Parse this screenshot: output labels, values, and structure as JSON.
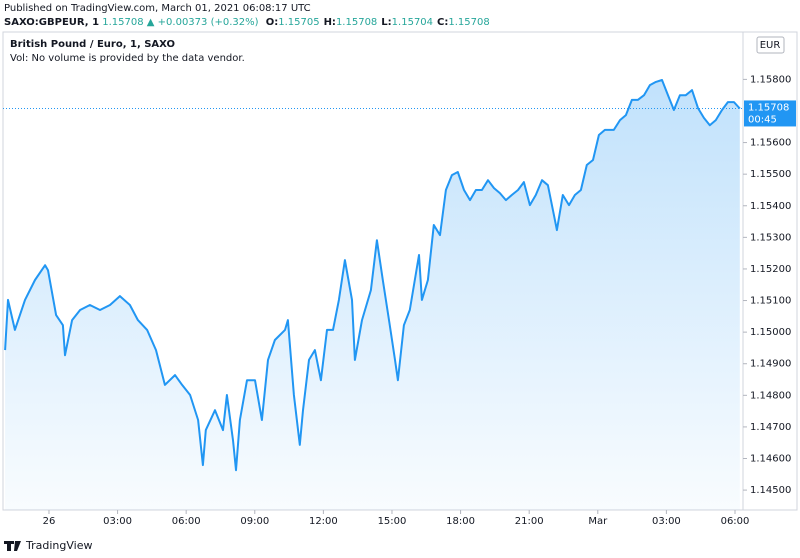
{
  "chart_data": {
    "type": "area",
    "published": "Published on TradingView.com, March 01, 2021 06:08:17 UTC",
    "symbol": "SAXO:GBPEUR, 1",
    "last": 1.15708,
    "arrow": "▲",
    "change": "+0.00373 (+0.32%)",
    "ohlc": [
      {
        "label": "O:",
        "value": 1.15705
      },
      {
        "label": "H:",
        "value": 1.15708
      },
      {
        "label": "L:",
        "value": 1.15704
      },
      {
        "label": "C:",
        "value": 1.15708
      }
    ],
    "title": "British Pound / Euro, 1, SAXO",
    "subtitle": "Vol: No volume is provided by the data vendor.",
    "currency": "EUR",
    "price_label": {
      "value": 1.15708,
      "label": "1.15708"
    },
    "countdown": "00:45",
    "brand": "TradingView",
    "xlim": [
      -2.01,
      30.35
    ],
    "ylim": [
      1.14437,
      1.1595
    ],
    "xticks": [
      {
        "value": 0,
        "label": "26"
      },
      {
        "value": 3,
        "label": "03:00"
      },
      {
        "value": 6,
        "label": "06:00"
      },
      {
        "value": 9,
        "label": "09:00"
      },
      {
        "value": 12,
        "label": "12:00"
      },
      {
        "value": 15,
        "label": "15:00"
      },
      {
        "value": 18,
        "label": "18:00"
      },
      {
        "value": 21,
        "label": "21:00"
      },
      {
        "value": 24,
        "label": "Mar"
      },
      {
        "value": 27,
        "label": "03:00"
      },
      {
        "value": 30,
        "label": "06:00"
      }
    ],
    "yticks": [
      {
        "value": 1.158,
        "label": "1.15800"
      },
      {
        "value": 1.156,
        "label": "1.15600"
      },
      {
        "value": 1.155,
        "label": "1.15500"
      },
      {
        "value": 1.154,
        "label": "1.15400"
      },
      {
        "value": 1.153,
        "label": "1.15300"
      },
      {
        "value": 1.152,
        "label": "1.15200"
      },
      {
        "value": 1.151,
        "label": "1.15100"
      },
      {
        "value": 1.15,
        "label": "1.15000"
      },
      {
        "value": 1.149,
        "label": "1.14900"
      },
      {
        "value": 1.148,
        "label": "1.14800"
      },
      {
        "value": 1.147,
        "label": "1.14700"
      },
      {
        "value": 1.146,
        "label": "1.14600"
      },
      {
        "value": 1.145,
        "label": "1.14500"
      }
    ],
    "x": [
      -1.92,
      -1.79,
      -1.49,
      -1.05,
      -0.61,
      -0.17,
      -0.04,
      0.31,
      0.61,
      0.7,
      1.01,
      1.36,
      1.79,
      2.23,
      2.67,
      3.1,
      3.54,
      3.89,
      4.29,
      4.68,
      5.07,
      5.51,
      5.82,
      6.17,
      6.52,
      6.73,
      6.86,
      7.26,
      7.61,
      7.78,
      8.05,
      8.18,
      8.35,
      8.66,
      9.01,
      9.31,
      9.58,
      9.88,
      10.32,
      10.45,
      10.71,
      10.97,
      11.11,
      11.37,
      11.63,
      11.89,
      12.16,
      12.42,
      12.68,
      12.94,
      13.25,
      13.38,
      13.69,
      14.08,
      14.34,
      14.6,
      14.87,
      15.13,
      15.26,
      15.52,
      15.78,
      16.18,
      16.31,
      16.57,
      16.83,
      17.1,
      17.36,
      17.62,
      17.88,
      18.15,
      18.41,
      18.67,
      18.93,
      19.2,
      19.46,
      19.72,
      19.98,
      20.24,
      20.51,
      20.77,
      21.03,
      21.29,
      21.56,
      21.82,
      22.08,
      22.21,
      22.47,
      22.74,
      23.0,
      23.26,
      23.52,
      23.79,
      24.05,
      24.31,
      24.7,
      24.97,
      25.23,
      25.49,
      25.75,
      26.02,
      26.28,
      26.54,
      26.81,
      27.07,
      27.33,
      27.59,
      27.85,
      28.12,
      28.38,
      28.64,
      28.9,
      29.16,
      29.43,
      29.69,
      29.95,
      30.21
    ],
    "series": [
      {
        "name": "GBPEUR",
        "color": "#2196f3",
        "values": [
          1.14943,
          1.15102,
          1.15007,
          1.15102,
          1.15165,
          1.15212,
          1.15196,
          1.15054,
          1.15022,
          1.14927,
          1.15038,
          1.1507,
          1.15086,
          1.1507,
          1.15086,
          1.15114,
          1.15086,
          1.15038,
          1.15007,
          1.14943,
          1.14833,
          1.14864,
          1.14833,
          1.14801,
          1.14722,
          1.14579,
          1.1469,
          1.14753,
          1.1469,
          1.14801,
          1.14658,
          1.14563,
          1.14722,
          1.14848,
          1.14848,
          1.14722,
          1.14912,
          1.14975,
          1.15007,
          1.15038,
          1.14801,
          1.14643,
          1.14753,
          1.14912,
          1.14943,
          1.14848,
          1.15007,
          1.15007,
          1.15102,
          1.15228,
          1.15102,
          1.14912,
          1.15038,
          1.15133,
          1.15291,
          1.15165,
          1.15038,
          1.14912,
          1.14848,
          1.15022,
          1.1507,
          1.15244,
          1.15102,
          1.15165,
          1.15339,
          1.15307,
          1.1545,
          1.15497,
          1.15507,
          1.1545,
          1.15418,
          1.1545,
          1.1545,
          1.15481,
          1.15456,
          1.1544,
          1.15418,
          1.15434,
          1.1545,
          1.15475,
          1.15402,
          1.15434,
          1.15481,
          1.15465,
          1.15371,
          1.15323,
          1.15434,
          1.15402,
          1.15434,
          1.1545,
          1.15529,
          1.15545,
          1.15624,
          1.1564,
          1.1564,
          1.15671,
          1.15687,
          1.15735,
          1.15735,
          1.1575,
          1.15782,
          1.15792,
          1.15798,
          1.1575,
          1.15703,
          1.1575,
          1.1575,
          1.15766,
          1.15709,
          1.15678,
          1.15655,
          1.15671,
          1.15703,
          1.15728,
          1.15728,
          1.15708
        ]
      }
    ]
  }
}
